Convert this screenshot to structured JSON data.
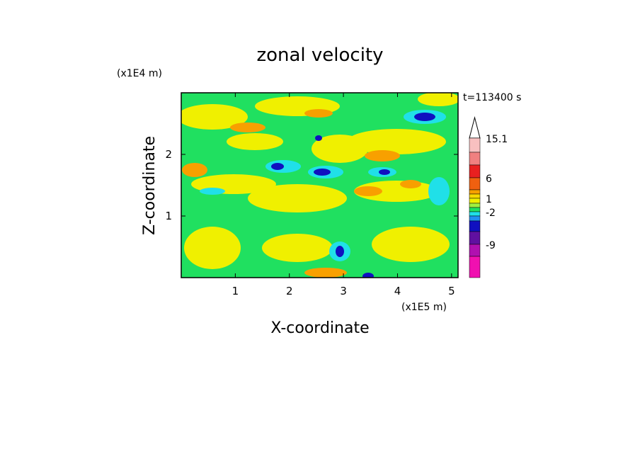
{
  "chart_data": {
    "type": "contour",
    "title": "zonal velocity",
    "x_label": "X-coordinate",
    "y_label": "Z-coordinate",
    "x_unit": "(x1E5 m)",
    "y_unit": "(x1E4 m)",
    "annotation": "t=113400 s",
    "xlim": [
      0,
      5.12
    ],
    "xticks": [
      1,
      2,
      3,
      4,
      5
    ],
    "ylim": [
      0,
      3
    ],
    "yticks": [
      1,
      2
    ],
    "colorbar": {
      "ticks": [
        15.1,
        6,
        1,
        -2,
        -9
      ],
      "colors": [
        "#ffffff",
        "#f8c0c0",
        "#f08080",
        "#e82020",
        "#f06010",
        "#f8a000",
        "#f8d800",
        "#f0f000",
        "#a0f040",
        "#20e060",
        "#20e0e8",
        "#2090f0",
        "#1010c0",
        "#6010a0",
        "#b010b0",
        "#f010b0"
      ]
    }
  }
}
